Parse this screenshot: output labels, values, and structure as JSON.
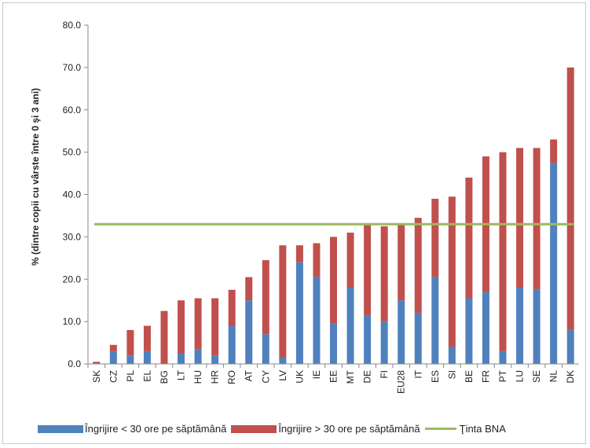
{
  "chart_data": {
    "type": "bar",
    "stacked": true,
    "categories": [
      "SK",
      "CZ",
      "PL",
      "EL",
      "BG",
      "LT",
      "HU",
      "HR",
      "RO",
      "AT",
      "CY",
      "LV",
      "UK",
      "IE",
      "EE",
      "MT",
      "DE",
      "FI",
      "EU28",
      "IT",
      "ES",
      "SI",
      "BE",
      "FR",
      "PT",
      "LU",
      "SE",
      "NL",
      "DK"
    ],
    "series": [
      {
        "name": "Îngrijire < 30 ore pe săptămână",
        "color": "#4f81bd",
        "values": [
          0,
          3,
          2,
          3,
          0,
          2.5,
          3.5,
          2,
          9,
          15,
          7,
          1.5,
          24,
          20.5,
          9.5,
          18,
          11.5,
          10,
          15,
          12,
          20.5,
          4,
          15.5,
          17,
          3,
          18,
          17.5,
          47.5,
          8
        ]
      },
      {
        "name": "Îngrijire > 30 ore pe săptămână",
        "color": "#c0504d",
        "values": [
          0.5,
          1.5,
          6,
          6,
          12.5,
          12.5,
          12,
          13.5,
          8.5,
          5.5,
          17.5,
          26.5,
          4,
          8,
          20.5,
          13,
          21.5,
          22.5,
          18,
          22.5,
          18.5,
          35.5,
          28.5,
          32,
          47,
          33,
          33.5,
          5.5,
          62
        ]
      }
    ],
    "target": {
      "name": "Ţinta BNA",
      "value": 33,
      "color": "#9bbb59"
    },
    "ylabel": "% (dintre copii cu vârste între 0 şi 3 ani)",
    "xlabel": "",
    "ylim": [
      0,
      80
    ],
    "yticks": [
      "0.0",
      "10.0",
      "20.0",
      "30.0",
      "40.0",
      "50.0",
      "60.0",
      "70.0",
      "80.0"
    ],
    "grid": false,
    "legend_position": "bottom"
  }
}
